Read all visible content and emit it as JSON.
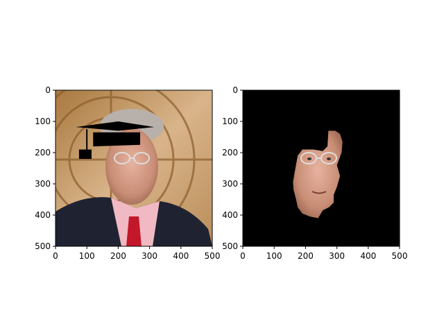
{
  "figure": {
    "background": "#ffffff"
  },
  "chart_data": [
    {
      "type": "image",
      "title": "",
      "xlabel": "",
      "ylabel": "",
      "xlim": [
        0,
        500
      ],
      "ylim": [
        500,
        0
      ],
      "xticks": [
        0,
        100,
        200,
        300,
        400,
        500
      ],
      "yticks": [
        0,
        100,
        200,
        300,
        400,
        500
      ],
      "xtick_labels": [
        "0",
        "100",
        "200",
        "300",
        "400",
        "500"
      ],
      "ytick_labels": [
        "0",
        "100",
        "200",
        "300",
        "400",
        "500"
      ],
      "grid": false,
      "content": "photo",
      "background_color": "#c9a37a",
      "overlay": {
        "shape": "graduation-cap",
        "color": "#000000",
        "board": [
          [
            65,
            118
          ],
          [
            200,
            100
          ],
          [
            315,
            118
          ],
          [
            200,
            130
          ]
        ],
        "crown": [
          [
            120,
            135
          ],
          [
            270,
            135
          ],
          [
            270,
            175
          ],
          [
            120,
            180
          ]
        ],
        "tassel_x": 100,
        "tassel_top": 125,
        "tassel_bottom": 210,
        "tassel_box": [
          [
            75,
            190
          ],
          [
            115,
            190
          ],
          [
            115,
            220
          ],
          [
            75,
            220
          ]
        ]
      },
      "face": {
        "center": [
          205,
          268
        ],
        "radii": [
          85,
          120
        ],
        "skin": "#d9a08a"
      }
    },
    {
      "type": "image",
      "title": "",
      "xlabel": "",
      "ylabel": "",
      "xlim": [
        0,
        500
      ],
      "ylim": [
        500,
        0
      ],
      "xticks": [
        0,
        100,
        200,
        300,
        400,
        500
      ],
      "yticks": [
        0,
        100,
        200,
        300,
        400,
        500
      ],
      "xtick_labels": [
        "0",
        "100",
        "200",
        "300",
        "400",
        "500"
      ],
      "ytick_labels": [
        "0",
        "100",
        "200",
        "300",
        "400",
        "500"
      ],
      "grid": false,
      "content": "masked-photo",
      "background_color": "#000000",
      "mask_color": "#d9a08a",
      "mask_outline": [
        [
          273,
          130
        ],
        [
          295,
          130
        ],
        [
          310,
          140
        ],
        [
          318,
          165
        ],
        [
          315,
          200
        ],
        [
          300,
          240
        ],
        [
          310,
          275
        ],
        [
          300,
          310
        ],
        [
          290,
          335
        ],
        [
          290,
          360
        ],
        [
          275,
          375
        ],
        [
          255,
          385
        ],
        [
          240,
          410
        ],
        [
          215,
          405
        ],
        [
          190,
          395
        ],
        [
          175,
          375
        ],
        [
          170,
          350
        ],
        [
          162,
          320
        ],
        [
          160,
          295
        ],
        [
          165,
          265
        ],
        [
          175,
          210
        ],
        [
          190,
          190
        ],
        [
          225,
          190
        ],
        [
          255,
          195
        ],
        [
          270,
          180
        ]
      ]
    }
  ]
}
